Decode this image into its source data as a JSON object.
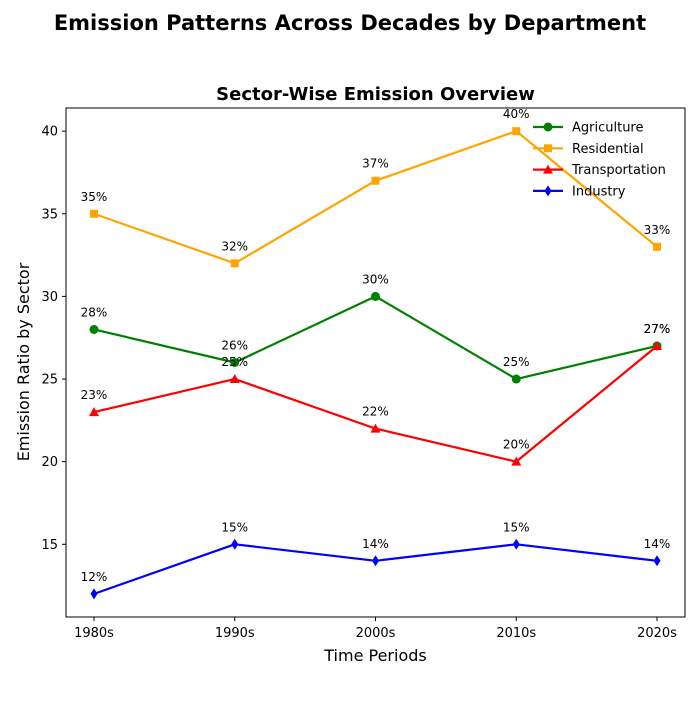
{
  "chart_data": {
    "type": "line",
    "suptitle": "Emission Patterns Across Decades by Department",
    "title": "Sector-Wise Emission Overview",
    "xlabel": "Time Periods",
    "ylabel": "Emission Ratio by Sector",
    "categories": [
      "1980s",
      "1990s",
      "2000s",
      "2010s",
      "2020s"
    ],
    "ylim": [
      10.6,
      41.4
    ],
    "yticks": [
      15,
      20,
      25,
      30,
      35,
      40
    ],
    "grid": false,
    "legend_position": "top-right",
    "label_suffix": "%",
    "series": [
      {
        "name": "Agriculture",
        "color": "#008000",
        "marker": "circle",
        "values": [
          28,
          26,
          30,
          25,
          27
        ]
      },
      {
        "name": "Residential",
        "color": "#FFA500",
        "marker": "square",
        "values": [
          35,
          32,
          37,
          40,
          33
        ]
      },
      {
        "name": "Transportation",
        "color": "#FF0000",
        "marker": "triangle",
        "values": [
          23,
          25,
          22,
          20,
          27
        ]
      },
      {
        "name": "Industry",
        "color": "#0000FF",
        "marker": "diamond",
        "values": [
          12,
          15,
          14,
          15,
          14
        ]
      }
    ]
  }
}
